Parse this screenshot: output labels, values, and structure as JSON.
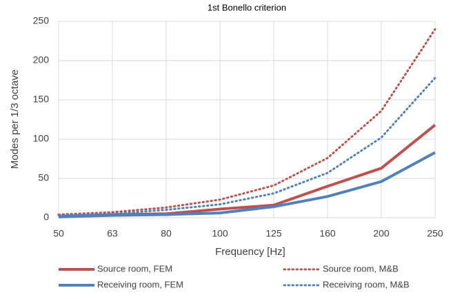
{
  "chart_data": {
    "type": "line",
    "title": "1st Bonello criterion",
    "x_label": "Frequency [Hz]",
    "y_label": "Modes per 1/3 octave",
    "categories": [
      "50",
      "63",
      "80",
      "100",
      "125",
      "160",
      "200",
      "250"
    ],
    "series": [
      {
        "name": "Source room, FEM",
        "color": "#c0504d",
        "dash": "solid",
        "values": [
          2,
          4,
          5,
          11,
          16,
          40,
          63,
          118
        ]
      },
      {
        "name": "Source room, M&B",
        "color": "#c0504d",
        "dash": "dotted",
        "values": [
          4,
          7,
          13,
          23,
          41,
          76,
          136,
          240
        ]
      },
      {
        "name": "Receiving room, FEM",
        "color": "#4f81bd",
        "dash": "solid",
        "values": [
          1,
          3,
          4,
          6,
          14,
          27,
          46,
          83
        ]
      },
      {
        "name": "Receiving room, M&B",
        "color": "#4f81bd",
        "dash": "dotted",
        "values": [
          3,
          5,
          10,
          17,
          31,
          57,
          102,
          178
        ]
      }
    ],
    "ylim": [
      0,
      250
    ],
    "yticks": [
      0,
      50,
      100,
      150,
      200,
      250
    ],
    "grid": true,
    "legend": "bottom"
  }
}
